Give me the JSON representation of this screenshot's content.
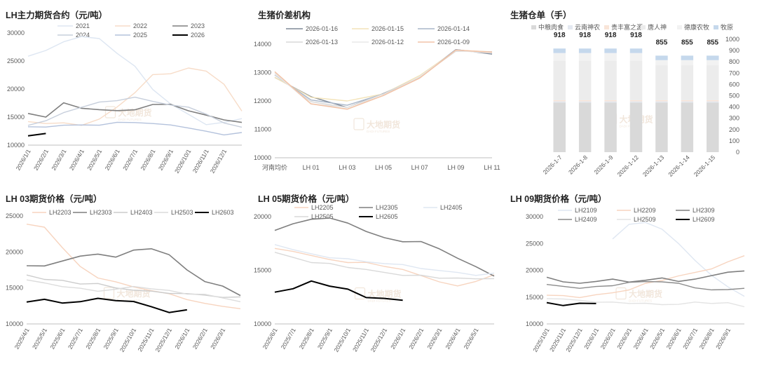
{
  "watermark": {
    "cn": "大地期货",
    "en": "DADI FUTURES"
  },
  "chart_data": [
    {
      "id": "main",
      "type": "line",
      "title": "LH主力期货合约（元/吨）",
      "xlabel": "",
      "ylabel": "",
      "ylim": [
        10000,
        30000
      ],
      "yticks": [
        10000,
        15000,
        20000,
        25000,
        30000
      ],
      "xticks": [
        "2026/1/1",
        "2026/2/1",
        "2026/3/1",
        "2026/4/1",
        "2026/5/1",
        "2026/6/1",
        "2026/7/1",
        "2026/8/1",
        "2026/9/1",
        "2026/10/1",
        "2026/11/1",
        "2026/12/1"
      ],
      "legend_position": "top",
      "series": [
        {
          "name": "2021",
          "color": "#dde6f2",
          "width": 1.4,
          "values": [
            26000,
            26800,
            28500,
            29200,
            29000,
            26500,
            24000,
            20000,
            17200,
            15500,
            13800,
            14000,
            14800
          ]
        },
        {
          "name": "2022",
          "color": "#f7dcc8",
          "width": 1.4,
          "values": [
            14200,
            14000,
            13900,
            13600,
            14500,
            16800,
            19500,
            22500,
            22800,
            23600,
            23200,
            21000,
            16000
          ]
        },
        {
          "name": "2023",
          "color": "#7f7f7f",
          "width": 1.6,
          "values": [
            15500,
            15000,
            17700,
            16500,
            16400,
            16000,
            16300,
            17400,
            17200,
            16200,
            15200,
            14500,
            14200
          ]
        },
        {
          "name": "2024",
          "color": "#c7cfdc",
          "width": 1.4,
          "values": [
            13600,
            14200,
            15800,
            16900,
            17600,
            18000,
            18400,
            17800,
            17300,
            16700,
            15600,
            13800,
            13200
          ]
        },
        {
          "name": "2025",
          "color": "#b4c2dc",
          "width": 1.4,
          "values": [
            13200,
            13300,
            13400,
            13600,
            13700,
            14000,
            14100,
            13700,
            13600,
            13200,
            12400,
            11900,
            12100
          ]
        },
        {
          "name": "2026",
          "color": "#000000",
          "width": 2.0,
          "values": [
            11800,
            12000,
            null,
            null,
            null,
            null,
            null,
            null,
            null,
            null,
            null,
            null,
            null
          ]
        }
      ]
    },
    {
      "id": "spread",
      "type": "line",
      "title": "生猪价差机构",
      "ylim": [
        10000,
        14000
      ],
      "yticks": [
        10000,
        11000,
        12000,
        13000,
        14000
      ],
      "categories": [
        "河南均价",
        "LH 01",
        "LH 03",
        "LH 05",
        "LH 07",
        "LH 09",
        "LH 11"
      ],
      "legend_position": "top",
      "series": [
        {
          "name": "2026-01-16",
          "color": "#7f8896",
          "width": 1.4,
          "values": [
            12800,
            12150,
            11800,
            12250,
            12850,
            13780,
            13650
          ]
        },
        {
          "name": "2026-01-15",
          "color": "#f3e3b8",
          "width": 1.4,
          "values": [
            12850,
            12100,
            12000,
            12280,
            12880,
            13800,
            13700
          ]
        },
        {
          "name": "2026-01-14",
          "color": "#a9b6c8",
          "width": 1.4,
          "values": [
            12900,
            12050,
            11820,
            12250,
            12860,
            13790,
            13700
          ]
        },
        {
          "name": "2026-01-13",
          "color": "#d9d9d9",
          "width": 1.4,
          "values": [
            12950,
            11960,
            11780,
            12220,
            12840,
            13780,
            13720
          ]
        },
        {
          "name": "2026-01-12",
          "color": "#e8e8e8",
          "width": 1.4,
          "values": [
            12980,
            11920,
            11760,
            12200,
            12830,
            13770,
            13720
          ]
        },
        {
          "name": "2026-01-09",
          "color": "#f2c4a8",
          "width": 1.6,
          "values": [
            13000,
            11900,
            11740,
            12180,
            12820,
            13760,
            13720
          ]
        }
      ]
    },
    {
      "id": "warehouse",
      "type": "bar",
      "title": "生猪仓单（手）",
      "ylim": [
        0,
        1000
      ],
      "yticks": [
        0,
        100,
        200,
        300,
        400,
        500,
        600,
        700,
        800,
        900,
        1000
      ],
      "categories": [
        "2026-1-7",
        "2026-1-8",
        "2026-1-9",
        "2026-1-12",
        "2026-1-13",
        "2026-1-14",
        "2026-1-15"
      ],
      "totals": [
        918,
        918,
        918,
        918,
        855,
        855,
        855
      ],
      "legend_position": "top",
      "series": [
        {
          "name": "中粮肉食",
          "color": "#d9d9d9",
          "values": [
            440,
            440,
            440,
            440,
            440,
            440,
            440
          ]
        },
        {
          "name": "云南神农",
          "color": "#e4e9f1",
          "values": [
            10,
            10,
            10,
            10,
            10,
            10,
            10
          ]
        },
        {
          "name": "贵丰富之源",
          "color": "#f9e5d8",
          "values": [
            10,
            10,
            10,
            10,
            10,
            10,
            10
          ]
        },
        {
          "name": "唐人神",
          "color": "#ececec",
          "values": [
            350,
            350,
            350,
            350,
            310,
            310,
            310
          ]
        },
        {
          "name": "德康农牧",
          "color": "#f2f2f2",
          "values": [
            68,
            68,
            68,
            68,
            45,
            45,
            45
          ]
        },
        {
          "name": "牧原",
          "color": "#c5d8ec",
          "values": [
            40,
            40,
            40,
            40,
            40,
            40,
            40
          ]
        }
      ]
    },
    {
      "id": "lh03",
      "type": "line",
      "title": "LH 03期货价格（元/吨）",
      "ylim": [
        10000,
        25000
      ],
      "yticks": [
        10000,
        15000,
        20000,
        25000
      ],
      "xticks": [
        "2025/4/1",
        "2025/5/1",
        "2025/6/1",
        "2025/7/1",
        "2025/8/1",
        "2025/9/1",
        "2025/10/1",
        "2025/11/1",
        "2025/12/1",
        "2026/1/1",
        "2026/2/1",
        "2026/3/1"
      ],
      "legend_position": "top",
      "series": [
        {
          "name": "LH2203",
          "color": "#f7d4bf",
          "width": 1.4,
          "values": [
            23800,
            23500,
            20500,
            18000,
            16500,
            15800,
            15200,
            14500,
            14200,
            13500,
            12800,
            12500,
            12000
          ]
        },
        {
          "name": "LH2303",
          "color": "#7f7f7f",
          "width": 1.6,
          "values": [
            18200,
            18000,
            18800,
            19300,
            19700,
            19400,
            20200,
            20500,
            19500,
            17500,
            16000,
            15200,
            14000
          ]
        },
        {
          "name": "LH2403",
          "color": "#cccccc",
          "width": 1.4,
          "values": [
            16800,
            16300,
            16000,
            15600,
            15500,
            15000,
            14800,
            14500,
            14300,
            14100,
            14000,
            13800,
            13700
          ]
        },
        {
          "name": "LH2503",
          "color": "#dcdcdc",
          "width": 1.4,
          "values": [
            16000,
            15700,
            15300,
            14900,
            14600,
            14700,
            15200,
            15000,
            14600,
            14200,
            14000,
            13600,
            13200
          ]
        },
        {
          "name": "LH2603",
          "color": "#000000",
          "width": 2.0,
          "values": [
            13100,
            13300,
            12900,
            13200,
            13500,
            13300,
            13000,
            12400,
            11700,
            11900,
            null,
            null,
            null
          ]
        }
      ]
    },
    {
      "id": "lh05",
      "type": "line",
      "title": "LH 05期货价格（元/吨）",
      "ylim": [
        10000,
        20000
      ],
      "yticks": [
        10000,
        15000,
        20000
      ],
      "xticks": [
        "2025/6/1",
        "2025/7/1",
        "2025/8/1",
        "2025/9/1",
        "2025/10/1",
        "2025/11/1",
        "2025/12/1",
        "2026/1/1",
        "2026/2/1",
        "2026/3/1",
        "2026/4/1",
        "2026/5/1"
      ],
      "legend_position": "top",
      "series": [
        {
          "name": "LH2205",
          "color": "#f7d4bf",
          "width": 1.4,
          "values": [
            17000,
            16800,
            16300,
            16000,
            15800,
            15700,
            15400,
            15000,
            14500,
            14000,
            13500,
            14000,
            14500
          ]
        },
        {
          "name": "LH2305",
          "color": "#7f7f7f",
          "width": 1.6,
          "values": [
            18800,
            19300,
            19800,
            19800,
            19400,
            18700,
            18000,
            17700,
            17600,
            17000,
            16200,
            15300,
            14500
          ]
        },
        {
          "name": "LH2405",
          "color": "#dfe7f2",
          "width": 1.4,
          "values": [
            17400,
            17000,
            16500,
            16200,
            16000,
            15800,
            15700,
            15500,
            15200,
            14900,
            14800,
            14600,
            14700
          ]
        },
        {
          "name": "LH2505",
          "color": "#d9d9d9",
          "width": 1.4,
          "values": [
            16600,
            16200,
            15800,
            15600,
            15300,
            15000,
            14800,
            14600,
            14500,
            14300,
            14200,
            14200,
            14300
          ]
        },
        {
          "name": "LH2605",
          "color": "#000000",
          "width": 2.0,
          "values": [
            13000,
            13200,
            14000,
            13600,
            13200,
            12500,
            12300,
            12200,
            null,
            null,
            null,
            null,
            null
          ]
        }
      ]
    },
    {
      "id": "lh09",
      "type": "line",
      "title": "LH 09期货价格（元/吨）",
      "ylim": [
        10000,
        30000
      ],
      "yticks": [
        10000,
        15000,
        20000,
        25000,
        30000
      ],
      "xticks": [
        "2025/10/1",
        "2025/11/1",
        "2025/12/1",
        "2026/1/1",
        "2026/2/1",
        "2026/3/1",
        "2026/4/1",
        "2026/5/1",
        "2026/6/1",
        "2026/7/1",
        "2026/8/1",
        "2026/9/1"
      ],
      "legend_position": "top",
      "series": [
        {
          "name": "LH2109",
          "color": "#dfe7f2",
          "width": 1.4,
          "values": [
            null,
            null,
            null,
            null,
            26000,
            28500,
            29000,
            27500,
            25000,
            22000,
            19000,
            17000,
            15000
          ]
        },
        {
          "name": "LH2209",
          "color": "#f7d4bf",
          "width": 1.4,
          "values": [
            15500,
            15200,
            15000,
            15300,
            15800,
            16500,
            17500,
            18200,
            18800,
            19600,
            20400,
            21500,
            22800
          ]
        },
        {
          "name": "LH2309",
          "color": "#7f7f7f",
          "width": 1.6,
          "values": [
            18700,
            18000,
            17500,
            18000,
            18200,
            17800,
            18300,
            18500,
            18000,
            18200,
            19000,
            19800,
            19800
          ]
        },
        {
          "name": "LH2409",
          "color": "#8c8c8c",
          "width": 1.4,
          "values": [
            17200,
            17000,
            16800,
            16900,
            17200,
            17600,
            17900,
            18000,
            17500,
            16800,
            16200,
            16400,
            16800
          ]
        },
        {
          "name": "LH2509",
          "color": "#e3e3e3",
          "width": 1.4,
          "values": [
            14800,
            14500,
            14400,
            14200,
            14000,
            13900,
            13700,
            13600,
            13800,
            14000,
            13900,
            13800,
            13200
          ]
        },
        {
          "name": "LH2609",
          "color": "#000000",
          "width": 2.0,
          "values": [
            13900,
            13500,
            13700,
            13800,
            null,
            null,
            null,
            null,
            null,
            null,
            null,
            null,
            null
          ]
        }
      ]
    }
  ]
}
